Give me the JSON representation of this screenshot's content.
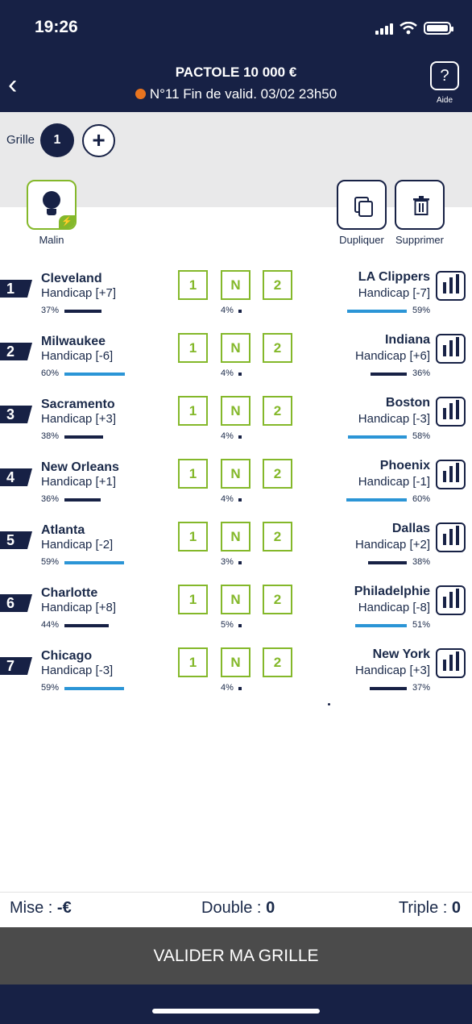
{
  "status": {
    "time": "19:26"
  },
  "header": {
    "title": "PACTOLE 10 000 €",
    "subtitle": "N°11 Fin de valid. 03/02 23h50",
    "help_icon": "?",
    "help_label": "Aide",
    "back_icon": "‹"
  },
  "grille": {
    "label": "Grille",
    "current": "1",
    "add_icon": "+"
  },
  "tools": {
    "malin": "Malin",
    "dupliquer": "Dupliquer",
    "supprimer": "Supprimer"
  },
  "colors": {
    "navy": "#172145",
    "green": "#84b82a",
    "blue": "#2b95d6"
  },
  "choices": [
    "1",
    "N",
    "2"
  ],
  "matches": [
    {
      "num": "1",
      "home": "Cleveland",
      "home_hc": "Handicap [+7]",
      "home_pct": "37%",
      "home_value": 37,
      "draw_pct": "4%",
      "away": "LA Clippers",
      "away_hc": "Handicap [-7]",
      "away_pct": "59%",
      "away_value": 59
    },
    {
      "num": "2",
      "home": "Milwaukee",
      "home_hc": "Handicap [-6]",
      "home_pct": "60%",
      "home_value": 60,
      "draw_pct": "4%",
      "away": "Indiana",
      "away_hc": "Handicap [+6]",
      "away_pct": "36%",
      "away_value": 36
    },
    {
      "num": "3",
      "home": "Sacramento",
      "home_hc": "Handicap [+3]",
      "home_pct": "38%",
      "home_value": 38,
      "draw_pct": "4%",
      "away": "Boston",
      "away_hc": "Handicap [-3]",
      "away_pct": "58%",
      "away_value": 58
    },
    {
      "num": "4",
      "home": "New Orleans",
      "home_hc": "Handicap [+1]",
      "home_pct": "36%",
      "home_value": 36,
      "draw_pct": "4%",
      "away": "Phoenix",
      "away_hc": "Handicap [-1]",
      "away_pct": "60%",
      "away_value": 60
    },
    {
      "num": "5",
      "home": "Atlanta",
      "home_hc": "Handicap [-2]",
      "home_pct": "59%",
      "home_value": 59,
      "draw_pct": "3%",
      "away": "Dallas",
      "away_hc": "Handicap [+2]",
      "away_pct": "38%",
      "away_value": 38
    },
    {
      "num": "6",
      "home": "Charlotte",
      "home_hc": "Handicap [+8]",
      "home_pct": "44%",
      "home_value": 44,
      "draw_pct": "5%",
      "away": "Philadelphie",
      "away_hc": "Handicap [-8]",
      "away_pct": "51%",
      "away_value": 51
    },
    {
      "num": "7",
      "home": "Chicago",
      "home_hc": "Handicap [-3]",
      "home_pct": "59%",
      "home_value": 59,
      "draw_pct": "4%",
      "away": "New York",
      "away_hc": "Handicap [+3]",
      "away_pct": "37%",
      "away_value": 37
    }
  ],
  "footer": {
    "mise_label": "Mise : ",
    "mise_value": "-€",
    "double_label": "Double : ",
    "double_value": "0",
    "triple_label": "Triple : ",
    "triple_value": "0",
    "validate": "VALIDER MA GRILLE"
  }
}
